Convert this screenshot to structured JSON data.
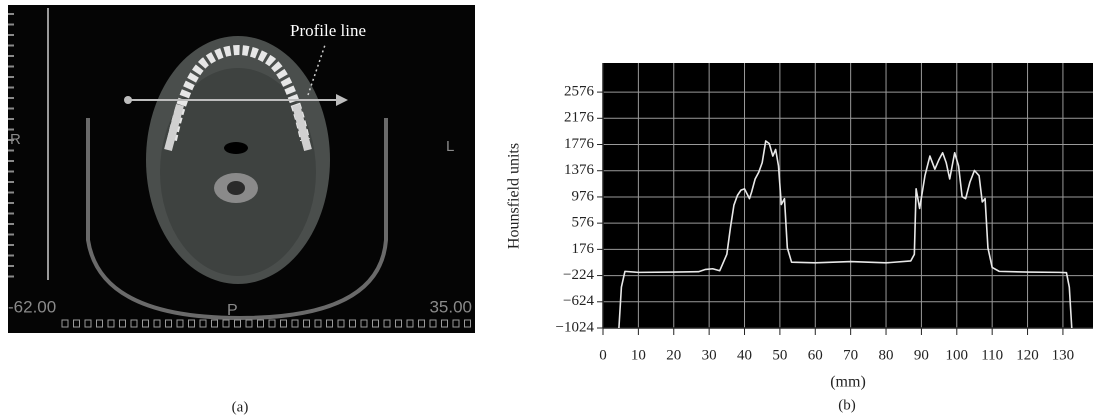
{
  "image_panel": {
    "annotation": "Profile line",
    "side_right": "R",
    "side_left": "L",
    "posterior": "P",
    "left_value": "-62.00",
    "right_value": "35.00",
    "caption": "(a)"
  },
  "chart_data": {
    "type": "line",
    "caption": "(b)",
    "y_label": "Hounsfield units",
    "x_label": "(mm)",
    "x": [
      4.5,
      5.2,
      6.2,
      10,
      20,
      27,
      29,
      31,
      33,
      35,
      36,
      37,
      38,
      39,
      40,
      41.4,
      42,
      43,
      44,
      45,
      46,
      47,
      48,
      48.8,
      49.6,
      50.4,
      51.3,
      52.1,
      53.3,
      60,
      70,
      80,
      87,
      88,
      88.5,
      89.5,
      91,
      92.4,
      93.8,
      95,
      96,
      97,
      98,
      99.4,
      100.5,
      101.5,
      102.5,
      103.7,
      105,
      106.3,
      107.2,
      108,
      108.8,
      110,
      112,
      120,
      129,
      131,
      131.8,
      132.5
    ],
    "series": [
      {
        "color": "#e8e8e8",
        "values": [
          -1024,
          -400,
          -160,
          -175,
          -170,
          -165,
          -130,
          -120,
          -150,
          100,
          500,
          850,
          1000,
          1080,
          1100,
          950,
          1050,
          1250,
          1350,
          1500,
          1830,
          1790,
          1600,
          1700,
          1450,
          860,
          950,
          200,
          -20,
          -30,
          -10,
          -30,
          0,
          100,
          1100,
          800,
          1300,
          1600,
          1400,
          1550,
          1650,
          1500,
          1250,
          1650,
          1450,
          980,
          950,
          1200,
          1380,
          1300,
          900,
          950,
          200,
          -100,
          -160,
          -170,
          -175,
          -180,
          -400,
          -1024
        ]
      }
    ],
    "xlim": [
      0,
      138.5
    ],
    "ylim": [
      -1024,
      3020
    ],
    "xticks": [
      0,
      10,
      20,
      30,
      40,
      50,
      60,
      70,
      80,
      90,
      100,
      110,
      120,
      130
    ],
    "yticks": [
      {
        "value": -1024,
        "label": "−1024"
      },
      {
        "value": -624,
        "label": "−624"
      },
      {
        "value": -224,
        "label": "−224"
      },
      176,
      576,
      976,
      1376,
      1776,
      2176,
      2576
    ],
    "grid": true,
    "grid_color": "#9a9a9a",
    "plot_background": "#000000"
  }
}
